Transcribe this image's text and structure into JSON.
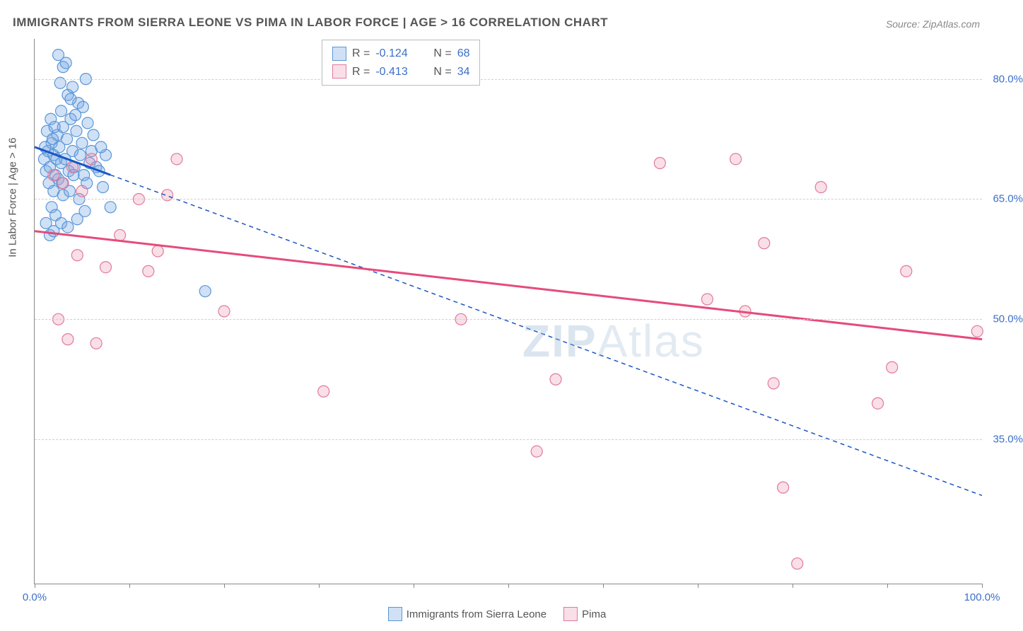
{
  "title": "IMMIGRANTS FROM SIERRA LEONE VS PIMA IN LABOR FORCE | AGE > 16 CORRELATION CHART",
  "source": "Source: ZipAtlas.com",
  "yaxis_label": "In Labor Force | Age > 16",
  "watermark_a": "ZIP",
  "watermark_b": "Atlas",
  "chart": {
    "type": "scatter",
    "xlim": [
      0,
      100
    ],
    "ylim": [
      17,
      85
    ],
    "yticks": [
      {
        "v": 35.0,
        "label": "35.0%"
      },
      {
        "v": 50.0,
        "label": "50.0%"
      },
      {
        "v": 65.0,
        "label": "65.0%"
      },
      {
        "v": 80.0,
        "label": "80.0%"
      }
    ],
    "xticks_minor": [
      0,
      10,
      20,
      30,
      40,
      50,
      60,
      70,
      80,
      90,
      100
    ],
    "xtick_labels": [
      {
        "v": 0,
        "label": "0.0%"
      },
      {
        "v": 100,
        "label": "100.0%"
      }
    ],
    "grid_color": "#d0d0d0",
    "background_color": "#ffffff",
    "marker_radius": 8,
    "marker_stroke_width": 1.2,
    "series": [
      {
        "name": "Immigrants from Sierra Leone",
        "color_fill": "rgba(120,170,230,0.35)",
        "color_stroke": "#5a96d8",
        "trend_color": "#1a56c4",
        "trend_solid_until_x": 8,
        "trend_dashed": true,
        "trend": {
          "x1": 0,
          "y1": 71.5,
          "x2": 100,
          "y2": 28.0
        },
        "R": "-0.124",
        "N": "68",
        "points": [
          [
            1.0,
            70.0
          ],
          [
            1.2,
            68.5
          ],
          [
            1.4,
            71.0
          ],
          [
            1.6,
            69.0
          ],
          [
            1.8,
            72.0
          ],
          [
            2.0,
            70.5
          ],
          [
            2.2,
            68.0
          ],
          [
            2.4,
            73.0
          ],
          [
            2.6,
            71.5
          ],
          [
            2.8,
            69.5
          ],
          [
            3.0,
            74.0
          ],
          [
            3.2,
            70.0
          ],
          [
            3.4,
            72.5
          ],
          [
            3.6,
            68.5
          ],
          [
            3.8,
            75.0
          ],
          [
            4.0,
            71.0
          ],
          [
            4.2,
            69.0
          ],
          [
            4.4,
            73.5
          ],
          [
            4.6,
            77.0
          ],
          [
            4.8,
            70.5
          ],
          [
            5.0,
            72.0
          ],
          [
            5.2,
            68.0
          ],
          [
            5.4,
            80.0
          ],
          [
            5.6,
            74.5
          ],
          [
            5.8,
            69.5
          ],
          [
            6.0,
            71.0
          ],
          [
            2.5,
            83.0
          ],
          [
            3.0,
            81.5
          ],
          [
            3.5,
            78.0
          ],
          [
            2.8,
            76.0
          ],
          [
            4.0,
            79.0
          ],
          [
            1.5,
            67.0
          ],
          [
            2.0,
            66.0
          ],
          [
            2.5,
            67.5
          ],
          [
            3.0,
            65.5
          ],
          [
            1.8,
            64.0
          ],
          [
            2.2,
            63.0
          ],
          [
            2.8,
            62.0
          ],
          [
            3.5,
            61.5
          ],
          [
            4.5,
            62.5
          ],
          [
            1.2,
            62.0
          ],
          [
            1.6,
            60.5
          ],
          [
            2.0,
            61.0
          ],
          [
            8.0,
            64.0
          ],
          [
            7.5,
            70.5
          ],
          [
            6.5,
            69.0
          ],
          [
            7.0,
            71.5
          ],
          [
            5.5,
            67.0
          ],
          [
            6.2,
            73.0
          ],
          [
            6.8,
            68.5
          ],
          [
            7.2,
            66.5
          ],
          [
            18.0,
            53.5
          ],
          [
            3.3,
            82.0
          ],
          [
            2.7,
            79.5
          ],
          [
            3.8,
            77.5
          ],
          [
            4.3,
            75.5
          ],
          [
            5.1,
            76.5
          ],
          [
            1.3,
            73.5
          ],
          [
            1.7,
            75.0
          ],
          [
            2.1,
            74.0
          ],
          [
            2.9,
            67.0
          ],
          [
            3.7,
            66.0
          ],
          [
            4.1,
            68.0
          ],
          [
            4.7,
            65.0
          ],
          [
            5.3,
            63.5
          ],
          [
            1.1,
            71.5
          ],
          [
            1.9,
            72.5
          ],
          [
            2.3,
            70.0
          ]
        ]
      },
      {
        "name": "Pima",
        "color_fill": "rgba(235,150,175,0.30)",
        "color_stroke": "#e27a9b",
        "trend_color": "#e54b7b",
        "trend_solid_until_x": 100,
        "trend_dashed": false,
        "trend": {
          "x1": 0,
          "y1": 61.0,
          "x2": 100,
          "y2": 47.5
        },
        "R": "-0.413",
        "N": "34",
        "points": [
          [
            2.0,
            68.0
          ],
          [
            3.0,
            67.0
          ],
          [
            4.0,
            69.0
          ],
          [
            5.0,
            66.0
          ],
          [
            6.0,
            70.0
          ],
          [
            11.0,
            65.0
          ],
          [
            14.0,
            65.5
          ],
          [
            15.0,
            70.0
          ],
          [
            9.0,
            60.5
          ],
          [
            4.5,
            58.0
          ],
          [
            2.5,
            50.0
          ],
          [
            3.5,
            47.5
          ],
          [
            6.5,
            47.0
          ],
          [
            7.5,
            56.5
          ],
          [
            12.0,
            56.0
          ],
          [
            13.0,
            58.5
          ],
          [
            20.0,
            51.0
          ],
          [
            30.5,
            41.0
          ],
          [
            45.0,
            50.0
          ],
          [
            53.0,
            33.5
          ],
          [
            55.0,
            42.5
          ],
          [
            66.0,
            69.5
          ],
          [
            71.0,
            52.5
          ],
          [
            74.0,
            70.0
          ],
          [
            75.0,
            51.0
          ],
          [
            77.0,
            59.5
          ],
          [
            78.0,
            42.0
          ],
          [
            79.0,
            29.0
          ],
          [
            80.5,
            19.5
          ],
          [
            83.0,
            66.5
          ],
          [
            89.0,
            39.5
          ],
          [
            90.5,
            44.0
          ],
          [
            92.0,
            56.0
          ],
          [
            99.5,
            48.5
          ]
        ]
      }
    ]
  },
  "legend_top": {
    "rows": [
      {
        "swatch_fill": "rgba(120,170,230,0.35)",
        "swatch_stroke": "#5a96d8",
        "r_label": "R =",
        "r_val": "-0.124",
        "n_label": "N =",
        "n_val": "68"
      },
      {
        "swatch_fill": "rgba(235,150,175,0.30)",
        "swatch_stroke": "#e27a9b",
        "r_label": "R =",
        "r_val": "-0.413",
        "n_label": "N =",
        "n_val": "34"
      }
    ],
    "text_color": "#555555",
    "value_color": "#3b6fc9"
  },
  "legend_bottom": {
    "items": [
      {
        "swatch_fill": "rgba(120,170,230,0.35)",
        "swatch_stroke": "#5a96d8",
        "label": "Immigrants from Sierra Leone"
      },
      {
        "swatch_fill": "rgba(235,150,175,0.30)",
        "swatch_stroke": "#e27a9b",
        "label": "Pima"
      }
    ]
  }
}
